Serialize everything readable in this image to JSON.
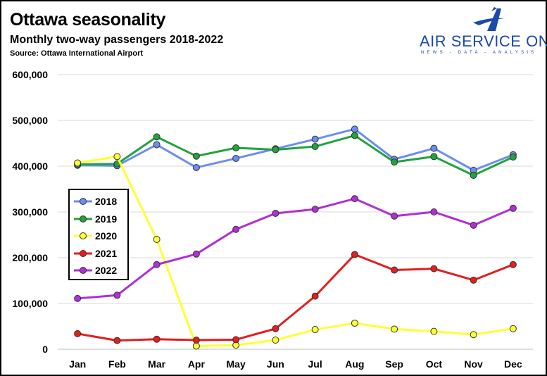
{
  "header": {
    "title": "Ottawa seasonality",
    "subtitle": "Monthly two-way passengers 2018-2022",
    "source": "Source: Ottawa International Airport"
  },
  "logo": {
    "name": "AIR SERVICE ONE",
    "tagline": "NEWS - DATA - ANALYSIS",
    "color": "#1b4aa8"
  },
  "chart_data": {
    "type": "line",
    "title": "Ottawa seasonality",
    "subtitle": "Monthly two-way passengers 2018-2022",
    "xlabel": "",
    "ylabel": "",
    "categories": [
      "Jan",
      "Feb",
      "Mar",
      "Apr",
      "May",
      "Jun",
      "Jul",
      "Aug",
      "Sep",
      "Oct",
      "Nov",
      "Dec"
    ],
    "ylim": [
      0,
      600000
    ],
    "yticks": [
      0,
      100000,
      200000,
      300000,
      400000,
      500000,
      600000
    ],
    "ytick_labels": [
      "0",
      "100,000",
      "200,000",
      "300,000",
      "400,000",
      "500,000",
      "600,000"
    ],
    "grid": true,
    "legend_position": "left-middle",
    "series": [
      {
        "name": "2018",
        "color": "#6b8ef0",
        "values": [
          402000,
          401000,
          447000,
          397000,
          417000,
          438000,
          459000,
          481000,
          415000,
          439000,
          391000,
          425000
        ]
      },
      {
        "name": "2019",
        "color": "#22a33c",
        "values": [
          404000,
          405000,
          464000,
          422000,
          440000,
          436000,
          443000,
          467000,
          409000,
          421000,
          380000,
          420000
        ]
      },
      {
        "name": "2020",
        "color": "#ffff33",
        "values": [
          407000,
          421000,
          240000,
          7000,
          9000,
          20000,
          43000,
          57000,
          44000,
          39000,
          32000,
          45000
        ]
      },
      {
        "name": "2021",
        "color": "#e51d1d",
        "values": [
          34000,
          19000,
          22000,
          20000,
          21000,
          45000,
          116000,
          207000,
          173000,
          176000,
          151000,
          185000
        ]
      },
      {
        "name": "2022",
        "color": "#b02fd6",
        "values": [
          111000,
          118000,
          185000,
          208000,
          262000,
          297000,
          306000,
          329000,
          291000,
          300000,
          271000,
          308000
        ]
      }
    ]
  }
}
